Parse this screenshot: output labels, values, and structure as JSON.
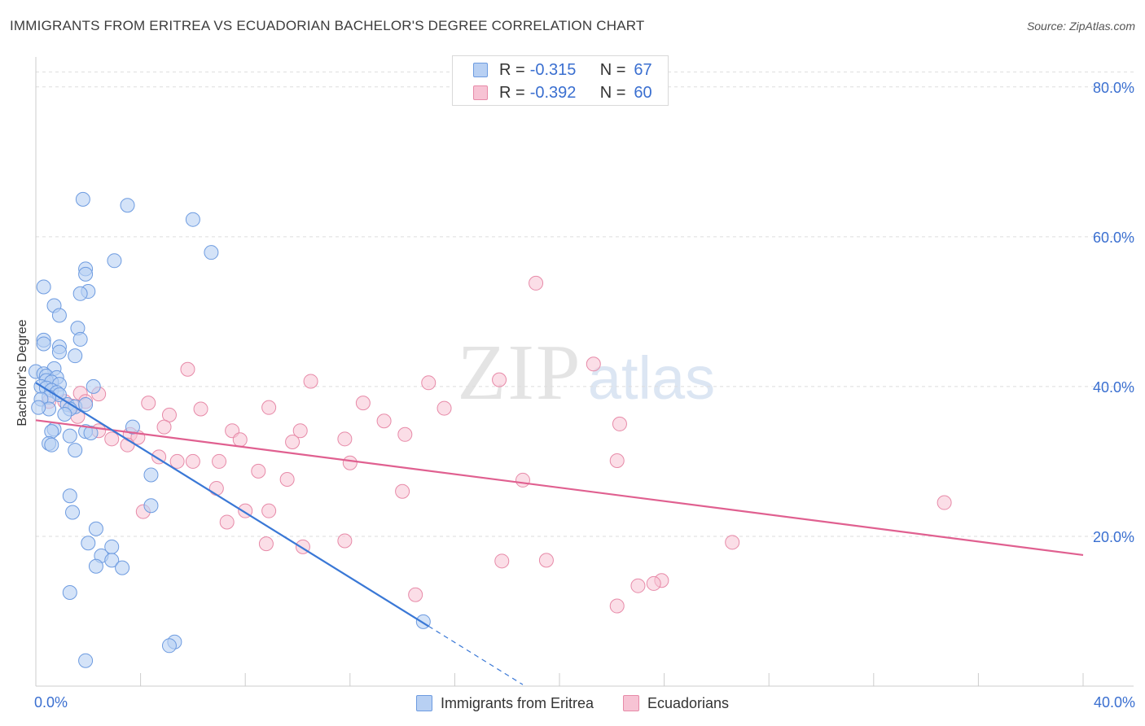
{
  "title": "IMMIGRANTS FROM ERITREA VS ECUADORIAN BACHELOR'S DEGREE CORRELATION CHART",
  "source": "Source: ZipAtlas.com",
  "watermark": {
    "zip": "ZIP",
    "atlas": "atlas"
  },
  "colors": {
    "blue_fill": "#b8d0f3",
    "blue_stroke": "#6d9be0",
    "blue_line": "#3a78d6",
    "pink_fill": "#f7c3d4",
    "pink_stroke": "#e78aa8",
    "pink_line": "#e06090",
    "axis_text": "#3a6fd0",
    "grid": "#dddddd"
  },
  "legend_top": [
    {
      "r_label": "R =",
      "r_value": "-0.315",
      "n_label": "N =",
      "n_value": "67"
    },
    {
      "r_label": "R =",
      "r_value": "-0.392",
      "n_label": "N =",
      "n_value": "60"
    }
  ],
  "chart_data": {
    "type": "scatter",
    "title": "IMMIGRANTS FROM ERITREA VS ECUADORIAN BACHELOR'S DEGREE CORRELATION CHART",
    "xlabel": "",
    "ylabel": "Bachelor's Degree",
    "xlim": [
      0,
      40
    ],
    "ylim": [
      0,
      84
    ],
    "y_ticks": [
      20,
      40,
      60,
      80
    ],
    "y_tick_labels": [
      "20.0%",
      "40.0%",
      "60.0%",
      "80.0%"
    ],
    "x_tick_labels": [
      "0.0%",
      "40.0%"
    ],
    "grid": true,
    "legend_position": "bottom",
    "series": [
      {
        "name": "Immigrants from Eritrea",
        "r": -0.315,
        "n": 67,
        "trend": {
          "x0": 0,
          "y0": 40.5,
          "x1": 15.0,
          "y1": 8.0,
          "dash_to_x": 18.6
        },
        "points": [
          [
            1.8,
            65.0
          ],
          [
            3.5,
            64.2
          ],
          [
            6.0,
            62.3
          ],
          [
            6.7,
            57.9
          ],
          [
            3.0,
            56.8
          ],
          [
            1.9,
            55.7
          ],
          [
            1.9,
            55.0
          ],
          [
            0.3,
            53.3
          ],
          [
            2.0,
            52.7
          ],
          [
            1.7,
            52.4
          ],
          [
            0.7,
            50.8
          ],
          [
            0.9,
            49.5
          ],
          [
            1.6,
            47.8
          ],
          [
            0.3,
            46.2
          ],
          [
            1.7,
            46.3
          ],
          [
            0.3,
            45.7
          ],
          [
            0.9,
            45.3
          ],
          [
            0.9,
            44.6
          ],
          [
            1.5,
            44.1
          ],
          [
            0.7,
            42.4
          ],
          [
            0.0,
            42.0
          ],
          [
            0.3,
            41.7
          ],
          [
            0.4,
            41.4
          ],
          [
            0.8,
            41.2
          ],
          [
            0.4,
            40.8
          ],
          [
            0.6,
            40.6
          ],
          [
            0.9,
            40.3
          ],
          [
            0.2,
            40.0
          ],
          [
            0.4,
            39.8
          ],
          [
            0.6,
            39.5
          ],
          [
            0.8,
            39.2
          ],
          [
            0.9,
            38.9
          ],
          [
            0.5,
            38.6
          ],
          [
            0.2,
            38.3
          ],
          [
            2.2,
            40.0
          ],
          [
            1.2,
            37.6
          ],
          [
            1.5,
            37.3
          ],
          [
            1.9,
            37.6
          ],
          [
            1.3,
            37.0
          ],
          [
            0.5,
            37.0
          ],
          [
            0.1,
            37.2
          ],
          [
            1.1,
            36.3
          ],
          [
            0.7,
            34.3
          ],
          [
            0.6,
            34.0
          ],
          [
            1.9,
            34.0
          ],
          [
            2.1,
            33.8
          ],
          [
            3.7,
            34.6
          ],
          [
            1.3,
            33.4
          ],
          [
            0.5,
            32.4
          ],
          [
            0.6,
            32.2
          ],
          [
            1.5,
            31.5
          ],
          [
            4.4,
            28.2
          ],
          [
            1.3,
            25.4
          ],
          [
            4.4,
            24.1
          ],
          [
            1.4,
            23.2
          ],
          [
            2.3,
            21.0
          ],
          [
            2.0,
            19.1
          ],
          [
            2.9,
            18.6
          ],
          [
            2.5,
            17.4
          ],
          [
            2.9,
            16.8
          ],
          [
            2.3,
            16.0
          ],
          [
            3.3,
            15.8
          ],
          [
            1.3,
            12.5
          ],
          [
            14.8,
            8.6
          ],
          [
            5.3,
            5.9
          ],
          [
            5.1,
            5.4
          ],
          [
            1.9,
            3.4
          ]
        ]
      },
      {
        "name": "Ecuadorians",
        "r": -0.392,
        "n": 60,
        "trend": {
          "x0": 0,
          "y0": 35.5,
          "x1": 40,
          "y1": 17.5
        },
        "points": [
          [
            19.1,
            53.8
          ],
          [
            21.3,
            43.0
          ],
          [
            5.8,
            42.3
          ],
          [
            10.5,
            40.7
          ],
          [
            15.0,
            40.5
          ],
          [
            17.7,
            40.9
          ],
          [
            1.7,
            39.1
          ],
          [
            2.4,
            39.0
          ],
          [
            0.5,
            38.0
          ],
          [
            1.1,
            38.0
          ],
          [
            1.9,
            38.0
          ],
          [
            1.4,
            37.4
          ],
          [
            4.3,
            37.8
          ],
          [
            12.5,
            37.8
          ],
          [
            6.3,
            37.0
          ],
          [
            8.9,
            37.2
          ],
          [
            15.6,
            37.1
          ],
          [
            5.1,
            36.2
          ],
          [
            1.6,
            36.0
          ],
          [
            13.3,
            35.4
          ],
          [
            22.3,
            35.0
          ],
          [
            4.9,
            34.6
          ],
          [
            7.5,
            34.1
          ],
          [
            10.1,
            34.1
          ],
          [
            14.1,
            33.6
          ],
          [
            2.4,
            34.1
          ],
          [
            3.6,
            33.6
          ],
          [
            2.9,
            33.0
          ],
          [
            3.9,
            33.2
          ],
          [
            11.8,
            33.0
          ],
          [
            7.8,
            32.9
          ],
          [
            9.8,
            32.6
          ],
          [
            3.5,
            32.2
          ],
          [
            4.7,
            30.6
          ],
          [
            5.4,
            30.0
          ],
          [
            6.0,
            30.0
          ],
          [
            7.0,
            30.0
          ],
          [
            12.0,
            29.8
          ],
          [
            22.2,
            30.1
          ],
          [
            8.5,
            28.7
          ],
          [
            9.6,
            27.6
          ],
          [
            18.6,
            27.5
          ],
          [
            6.9,
            26.4
          ],
          [
            14.0,
            26.0
          ],
          [
            34.7,
            24.5
          ],
          [
            4.1,
            23.3
          ],
          [
            8.0,
            23.4
          ],
          [
            8.9,
            23.4
          ],
          [
            7.3,
            21.9
          ],
          [
            8.8,
            19.0
          ],
          [
            11.8,
            19.4
          ],
          [
            10.2,
            18.6
          ],
          [
            26.6,
            19.2
          ],
          [
            17.8,
            16.7
          ],
          [
            14.5,
            12.2
          ],
          [
            23.9,
            14.1
          ],
          [
            23.0,
            13.4
          ],
          [
            23.6,
            13.7
          ],
          [
            22.2,
            10.7
          ],
          [
            19.5,
            16.8
          ]
        ]
      }
    ]
  }
}
